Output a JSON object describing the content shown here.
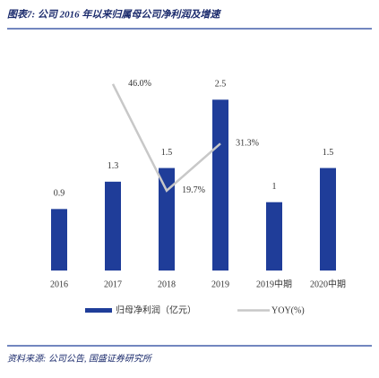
{
  "chart_data": {
    "type": "bar_line",
    "title": "图表7: 公司 2016 年以来归属母公司净利润及增速",
    "source": "资料来源: 公司公告, 国盛证券研究所",
    "categories": [
      "2016",
      "2017",
      "2018",
      "2019",
      "2019中期",
      "2020中期"
    ],
    "series": [
      {
        "name": "归母净利润（亿元）",
        "color": "#1f3d99",
        "type": "bar",
        "values": [
          0.9,
          1.3,
          1.5,
          2.5,
          1.0,
          1.5
        ]
      },
      {
        "name": "YOY(%)",
        "color": "#c8c8c8",
        "type": "line",
        "axis": "y2",
        "values": [
          null,
          46.0,
          19.7,
          31.3,
          null,
          null
        ],
        "value_labels": [
          null,
          "46.0%",
          "19.7%",
          "31.3%",
          null,
          null
        ]
      }
    ],
    "ylim": [
      0,
      3.5
    ],
    "y2lim": [
      0,
      59
    ],
    "grid": false,
    "legend": "bottom"
  }
}
